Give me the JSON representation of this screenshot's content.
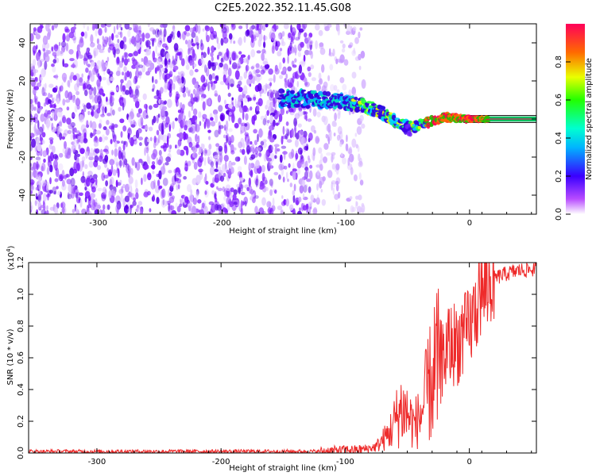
{
  "figure_title": "C2E5.2022.352.11.45.G08",
  "colors": {
    "axis": "#000000",
    "snr_line": "#ee2a2a",
    "baseline": "#000000",
    "background": "#ffffff"
  },
  "chart_data": [
    {
      "type": "heatmap",
      "name": "spectrogram",
      "title": "C2E5.2022.352.11.45.G08",
      "xlabel": "Height of straight line (km)",
      "ylabel": "Frequency (Hz)",
      "xlim": [
        -355,
        54
      ],
      "ylim": [
        -50,
        50
      ],
      "xticks": [
        -300,
        -200,
        -100,
        0
      ],
      "xtick_labels": [
        "-300",
        "-200",
        "-100",
        "0"
      ],
      "yticks": [
        -40,
        -20,
        0,
        20,
        40
      ],
      "ytick_labels": [
        "-40",
        "-20",
        "0",
        "20",
        "40"
      ],
      "noise_region_x": [
        -355,
        -85
      ],
      "signal_track": {
        "x": [
          -153,
          -140,
          -120,
          -100,
          -85,
          -70,
          -55,
          -45,
          -35,
          -20,
          0,
          15,
          54
        ],
        "freq": [
          10,
          11,
          10,
          9,
          7,
          3,
          -3,
          -4,
          -2,
          1,
          0,
          0,
          0
        ]
      },
      "colorbar": {
        "label": "Normalized spectral amplitude",
        "range": [
          0.0,
          1.0
        ],
        "ticks": [
          0.0,
          0.2,
          0.4,
          0.6,
          0.8
        ],
        "tick_labels": [
          "0.0",
          "0.2",
          "0.4",
          "0.6",
          "0.8"
        ]
      }
    },
    {
      "type": "line",
      "name": "snr",
      "xlabel": "Height of straight line (km)",
      "ylabel": "SNR (10 * v/v)",
      "y_multiplier": "(x10",
      "y_multiplier_exp": "4",
      "y_multiplier_close": ")",
      "xlim": [
        -355,
        54
      ],
      "ylim": [
        0,
        1.2
      ],
      "xticks": [
        -300,
        -200,
        -100,
        0
      ],
      "xtick_labels": [
        "-300",
        "-200",
        "-100",
        "0"
      ],
      "yticks": [
        0.0,
        0.2,
        0.4,
        0.6,
        0.8,
        1.0,
        1.2
      ],
      "ytick_labels": [
        "0.0",
        "0.2",
        "0.4",
        "0.6",
        "0.8",
        "1.0",
        "1.2"
      ],
      "series": [
        {
          "name": "SNR",
          "x": [
            -355,
            -300,
            -250,
            -200,
            -150,
            -120,
            -100,
            -90,
            -80,
            -75,
            -70,
            -65,
            -60,
            -55,
            -50,
            -45,
            -40,
            -35,
            -30,
            -25,
            -20,
            -15,
            -10,
            -5,
            0,
            5,
            10,
            15,
            20,
            30,
            40,
            54
          ],
          "y": [
            0.01,
            0.01,
            0.01,
            0.01,
            0.01,
            0.01,
            0.02,
            0.02,
            0.03,
            0.04,
            0.08,
            0.12,
            0.2,
            0.28,
            0.25,
            0.18,
            0.22,
            0.35,
            0.48,
            0.55,
            0.62,
            0.68,
            0.7,
            0.72,
            0.78,
            0.9,
            1.0,
            1.05,
            1.1,
            1.13,
            1.15,
            1.16
          ]
        }
      ]
    }
  ]
}
